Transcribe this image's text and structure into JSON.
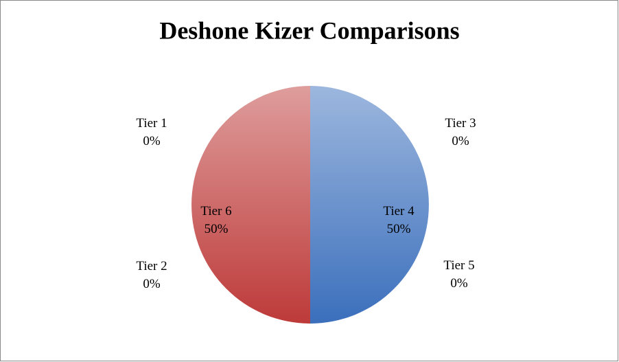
{
  "chart_data": {
    "type": "pie",
    "title": "Deshone Kizer Comparisons",
    "categories": [
      "Tier 1",
      "Tier 2",
      "Tier 3",
      "Tier 4",
      "Tier 5",
      "Tier 6"
    ],
    "values": [
      0,
      0,
      0,
      50,
      0,
      50
    ],
    "value_labels": [
      "0%",
      "0%",
      "0%",
      "50%",
      "0%",
      "50%"
    ],
    "colors": [
      "#9bbb59",
      "#8064a2",
      "#4bacc6",
      "#3b6fbc",
      "#f79646",
      "#bd3a39"
    ]
  }
}
